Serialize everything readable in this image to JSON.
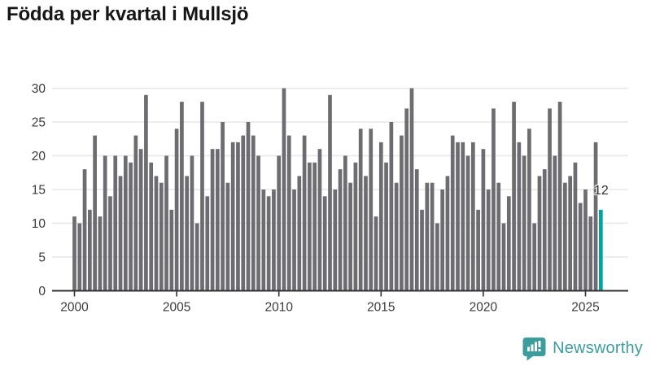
{
  "title": "Födda per kvartal i Mullsjö",
  "chart_data": {
    "type": "bar",
    "title": "Födda per kvartal i Mullsjö",
    "x_unit": "quarter",
    "first_period": "2000 Q1",
    "last_period": "2025 Q4",
    "values": [
      11,
      10,
      18,
      12,
      23,
      11,
      20,
      14,
      20,
      17,
      20,
      19,
      23,
      21,
      29,
      19,
      17,
      16,
      20,
      12,
      24,
      28,
      17,
      20,
      10,
      28,
      14,
      21,
      21,
      25,
      16,
      22,
      22,
      23,
      25,
      23,
      20,
      15,
      14,
      15,
      20,
      30,
      23,
      15,
      17,
      23,
      19,
      19,
      21,
      14,
      29,
      15,
      18,
      20,
      16,
      19,
      24,
      17,
      24,
      11,
      22,
      19,
      25,
      16,
      23,
      27,
      30,
      18,
      12,
      16,
      16,
      10,
      15,
      17,
      23,
      22,
      22,
      20,
      22,
      12,
      21,
      15,
      27,
      16,
      10,
      14,
      28,
      22,
      20,
      24,
      10,
      17,
      18,
      27,
      20,
      28,
      16,
      17,
      19,
      13,
      15,
      11,
      22,
      12
    ],
    "highlight_last": {
      "label": "12",
      "value": 12
    },
    "x_ticks": [
      "2000",
      "2005",
      "2010",
      "2015",
      "2020",
      "2025"
    ],
    "x_tick_years": [
      2000,
      2005,
      2010,
      2015,
      2020,
      2025
    ],
    "y_ticks": [
      0,
      5,
      10,
      15,
      20,
      25,
      30
    ],
    "ylim": [
      0,
      30
    ],
    "grid": true,
    "legend": false,
    "bar_color": "#6d6d71",
    "highlight_color": "#00a3a3",
    "gridline_color": "#e7e7e7",
    "axis_color": "#3a3a3a",
    "tick_label_color": "#3a3a3a"
  },
  "annotation": {
    "last_value_label": "12"
  },
  "footer": {
    "brand": "Newsworthy",
    "brand_color": "#3d9c9c"
  }
}
